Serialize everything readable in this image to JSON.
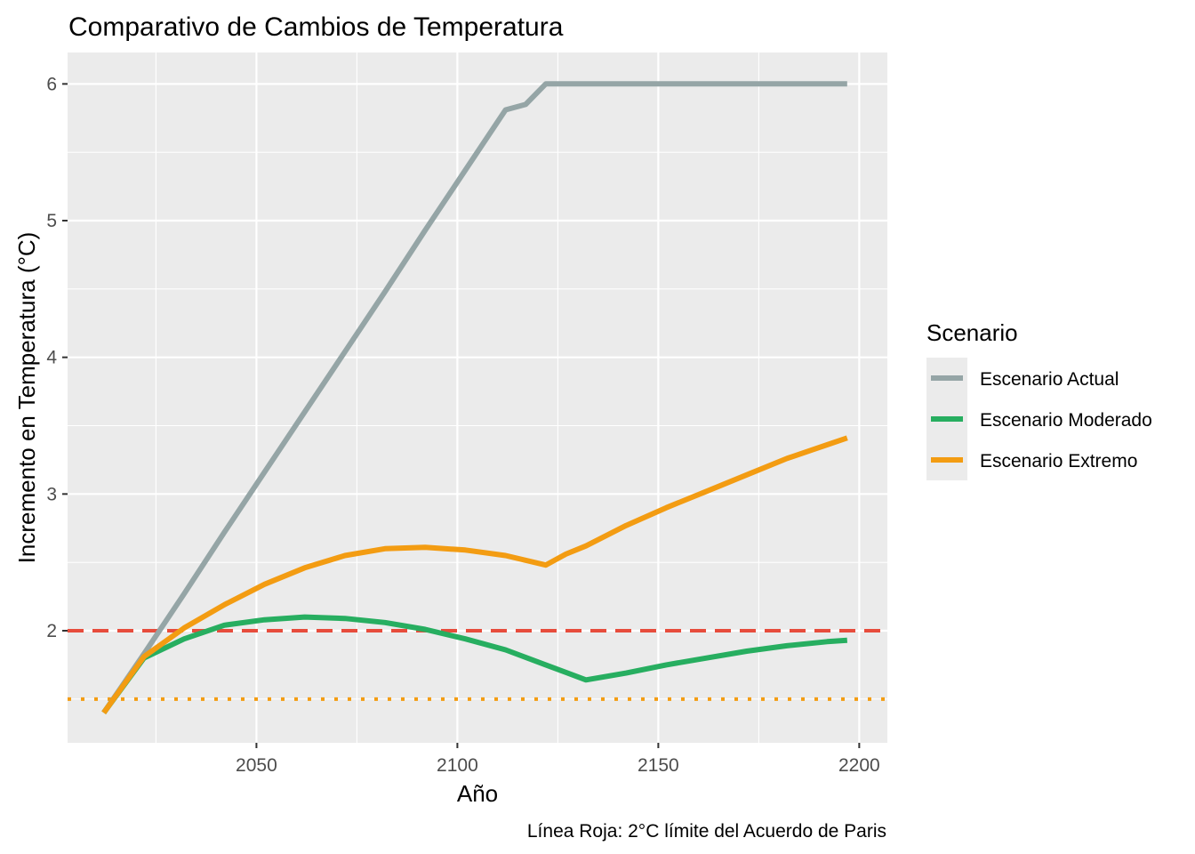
{
  "chart_data": {
    "type": "line",
    "title": "Comparativo de Cambios de Temperatura",
    "xlabel": "Año",
    "ylabel": "Incremento en Temperatura (°C)",
    "caption": "Línea Roja: 2°C límite del Acuerdo de Paris",
    "xlim": [
      2003,
      2207
    ],
    "ylim": [
      1.18,
      6.23
    ],
    "x_ticks": [
      2050,
      2100,
      2150,
      2200
    ],
    "y_ticks": [
      2,
      3,
      4,
      5,
      6
    ],
    "x_tick_labels": [
      "2050",
      "2100",
      "2150",
      "2200"
    ],
    "y_tick_labels": [
      "2",
      "3",
      "4",
      "5",
      "6"
    ],
    "legend": {
      "title": "Scenario",
      "position": "right",
      "entries": [
        "Escenario Actual",
        "Escenario Moderado",
        "Escenario Extremo"
      ]
    },
    "reference_lines": [
      {
        "y": 2.0,
        "color": "#e74c3c",
        "style": "dashed"
      },
      {
        "y": 1.5,
        "color": "#f39c12",
        "style": "dotted"
      }
    ],
    "grid": true,
    "series": [
      {
        "name": "Escenario Actual",
        "color": "#95a5a6",
        "x": [
          2012,
          2022,
          2032,
          2042,
          2052,
          2062,
          2072,
          2082,
          2092,
          2102,
          2112,
          2117,
          2122,
          2132,
          2142,
          2152,
          2162,
          2172,
          2182,
          2192,
          2197
        ],
        "y": [
          1.4,
          1.83,
          2.27,
          2.72,
          3.16,
          3.6,
          4.04,
          4.48,
          4.93,
          5.37,
          5.81,
          5.85,
          6.0,
          6.0,
          6.0,
          6.0,
          6.0,
          6.0,
          6.0,
          6.0,
          6.0
        ]
      },
      {
        "name": "Escenario Moderado",
        "color": "#27ae60",
        "x": [
          2012,
          2022,
          2032,
          2042,
          2052,
          2062,
          2072,
          2082,
          2092,
          2102,
          2112,
          2122,
          2132,
          2142,
          2152,
          2162,
          2172,
          2182,
          2192,
          2197
        ],
        "y": [
          1.4,
          1.8,
          1.94,
          2.04,
          2.08,
          2.1,
          2.09,
          2.06,
          2.01,
          1.94,
          1.86,
          1.75,
          1.64,
          1.69,
          1.75,
          1.8,
          1.85,
          1.89,
          1.92,
          1.93
        ]
      },
      {
        "name": "Escenario Extremo",
        "color": "#f39c12",
        "x": [
          2012,
          2022,
          2032,
          2042,
          2052,
          2062,
          2072,
          2082,
          2092,
          2102,
          2112,
          2122,
          2127,
          2132,
          2142,
          2152,
          2162,
          2172,
          2182,
          2192,
          2197
        ],
        "y": [
          1.4,
          1.81,
          2.02,
          2.19,
          2.34,
          2.46,
          2.55,
          2.6,
          2.61,
          2.59,
          2.55,
          2.48,
          2.56,
          2.62,
          2.77,
          2.9,
          3.02,
          3.14,
          3.26,
          3.36,
          3.41
        ]
      }
    ]
  }
}
